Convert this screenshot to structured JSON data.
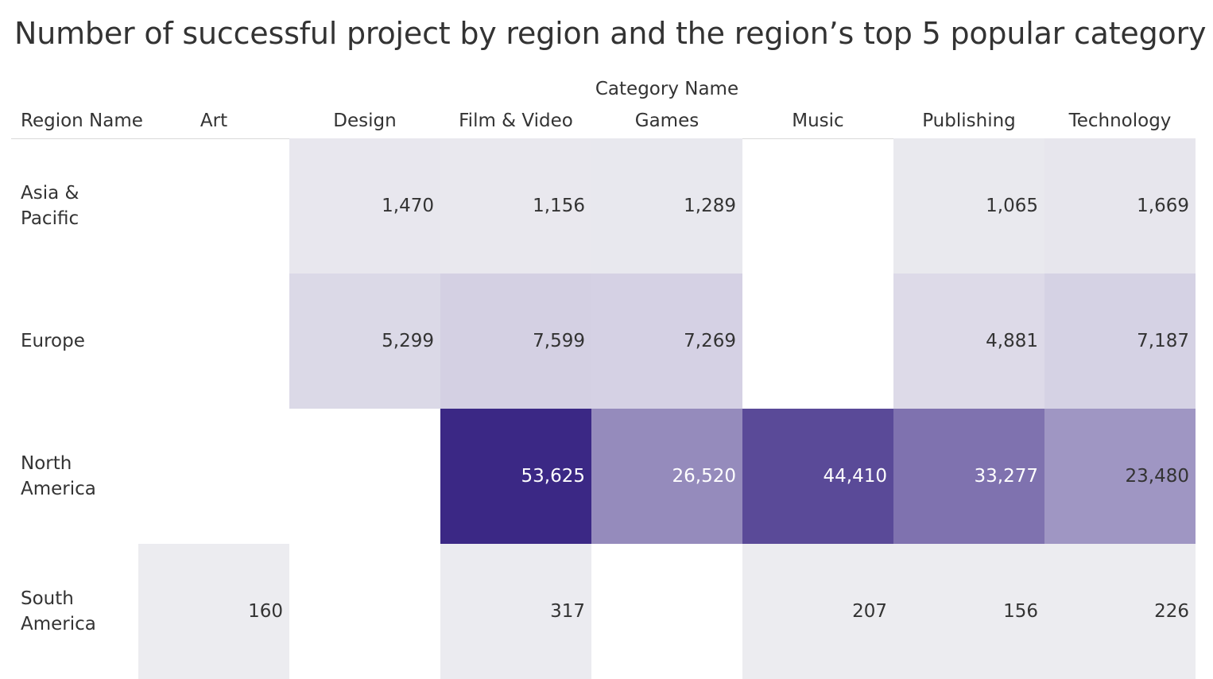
{
  "chart_data": {
    "type": "heatmap",
    "title": "Number of successful project by region and the region’s top 5 popular category",
    "x_group_label": "Category Name",
    "y_label": "Region Name",
    "categories": [
      "Art",
      "Design",
      "Film & Video",
      "Games",
      "Music",
      "Publishing",
      "Technology"
    ],
    "regions": [
      {
        "name": "Asia & Pacific",
        "label_lines": [
          "Asia &",
          "Pacific"
        ],
        "values": [
          null,
          1470,
          1156,
          1289,
          null,
          1065,
          1669
        ],
        "display": [
          "",
          "1,470",
          "1,156",
          "1,289",
          "",
          "1,065",
          "1,669"
        ]
      },
      {
        "name": "Europe",
        "label_lines": [
          "Europe"
        ],
        "values": [
          null,
          5299,
          7599,
          7269,
          null,
          4881,
          7187
        ],
        "display": [
          "",
          "5,299",
          "7,599",
          "7,269",
          "",
          "4,881",
          "7,187"
        ]
      },
      {
        "name": "North America",
        "label_lines": [
          "North",
          "America"
        ],
        "values": [
          null,
          null,
          53625,
          26520,
          44410,
          33277,
          23480
        ],
        "display": [
          "",
          "",
          "53,625",
          "26,520",
          "44,410",
          "33,277",
          "23,480"
        ]
      },
      {
        "name": "South America",
        "label_lines": [
          "South",
          "America"
        ],
        "values": [
          160,
          null,
          317,
          null,
          207,
          156,
          226
        ],
        "display": [
          "160",
          "",
          "317",
          "",
          "207",
          "156",
          "226"
        ]
      }
    ],
    "color_scale": {
      "low": "#ececf0",
      "mid": "#d2cee2",
      "high": "#3b2885"
    },
    "grid": false,
    "legend": "none"
  }
}
